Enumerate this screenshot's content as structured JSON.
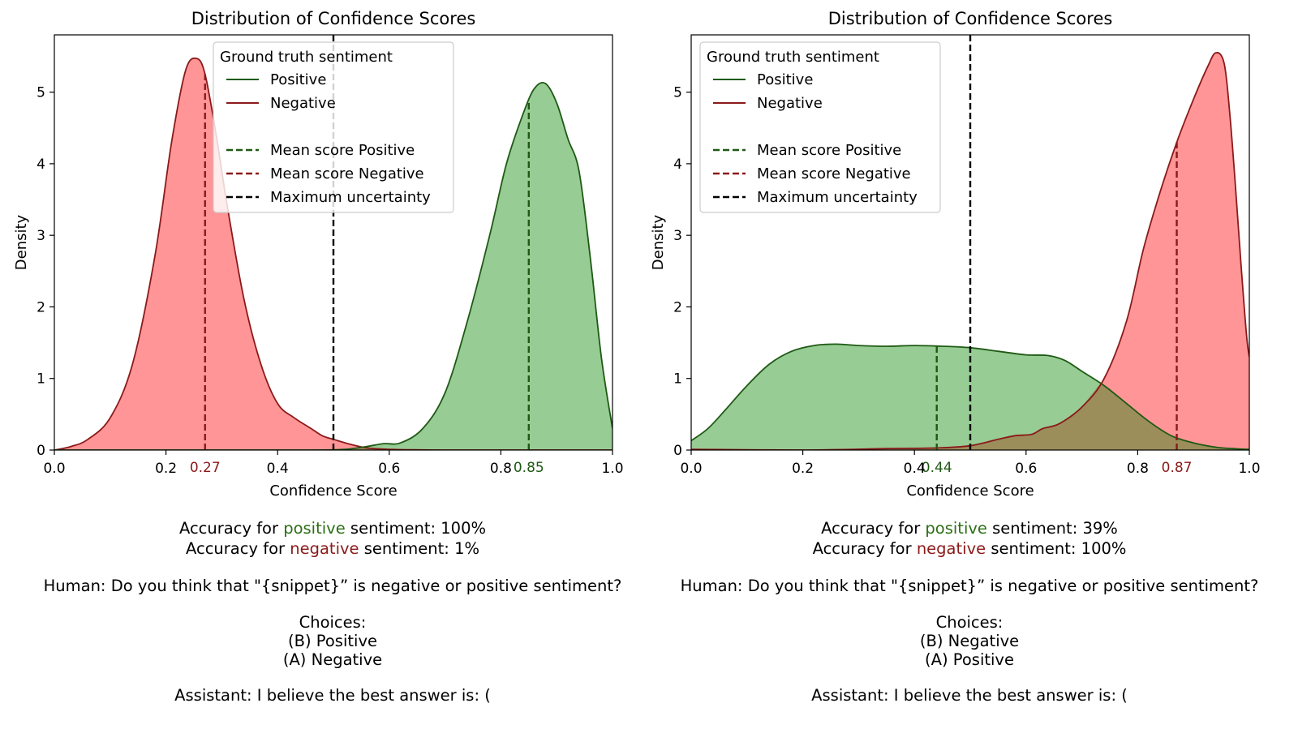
{
  "colors": {
    "positive_line": "#1e5a14",
    "negative_line": "#8b1a1a",
    "positive_fill": "#97cc94",
    "negative_fill": "#ff9596",
    "overlap_fill": "#9b8e5a",
    "uncertainty_line": "#000000"
  },
  "chart_data": [
    {
      "type": "area",
      "title": "Distribution of Confidence Scores",
      "xlabel": "Confidence Score",
      "ylabel": "Density",
      "xlim": [
        0,
        1
      ],
      "ylim": [
        0,
        5.8
      ],
      "xticks": [
        "0.0",
        "0.2",
        "0.4",
        "0.6",
        "0.8",
        "1.0"
      ],
      "yticks": [
        "0",
        "1",
        "2",
        "3",
        "4",
        "5"
      ],
      "ytick_values": [
        0,
        1,
        2,
        3,
        4,
        5
      ],
      "legend": {
        "title": "Ground truth sentiment",
        "placement": "top-center",
        "entries": [
          {
            "label": "Positive",
            "style": "solid",
            "color": "#1e5a14"
          },
          {
            "label": "Negative",
            "style": "solid",
            "color": "#8b1a1a"
          },
          {
            "label": "",
            "style": "none",
            "color": "#ffffff"
          },
          {
            "label": "Mean score Positive",
            "style": "dashed",
            "color": "#1e5a14"
          },
          {
            "label": "Mean score Negative",
            "style": "dashed",
            "color": "#8b1a1a"
          },
          {
            "label": "Maximum uncertainty",
            "style": "dashed",
            "color": "#000000"
          }
        ]
      },
      "series": [
        {
          "name": "Negative",
          "x": [
            0.0,
            0.03,
            0.06,
            0.1,
            0.14,
            0.18,
            0.21,
            0.235,
            0.255,
            0.27,
            0.29,
            0.31,
            0.34,
            0.37,
            0.4,
            0.43,
            0.46,
            0.48,
            0.5,
            0.53,
            0.56,
            0.6,
            0.7,
            0.8,
            0.9,
            1.0
          ],
          "y": [
            0.0,
            0.05,
            0.15,
            0.45,
            1.2,
            2.7,
            4.3,
            5.3,
            5.47,
            5.25,
            4.4,
            3.4,
            2.1,
            1.2,
            0.65,
            0.45,
            0.3,
            0.2,
            0.15,
            0.08,
            0.03,
            0.01,
            0.0,
            0.0,
            0.0,
            0.0
          ]
        },
        {
          "name": "Positive",
          "x": [
            0.0,
            0.3,
            0.45,
            0.52,
            0.56,
            0.59,
            0.62,
            0.66,
            0.7,
            0.74,
            0.78,
            0.81,
            0.84,
            0.86,
            0.88,
            0.9,
            0.92,
            0.94,
            0.96,
            0.98,
            1.0
          ],
          "y": [
            0.0,
            0.0,
            0.0,
            0.01,
            0.05,
            0.09,
            0.1,
            0.3,
            0.8,
            1.8,
            3.0,
            4.0,
            4.7,
            5.05,
            5.12,
            4.85,
            4.35,
            3.9,
            2.7,
            1.3,
            0.3
          ]
        }
      ],
      "mean_lines": [
        {
          "name": "Mean score Negative",
          "x": 0.27,
          "label": "0.27"
        },
        {
          "name": "Mean score Positive",
          "x": 0.85,
          "label": "0.85"
        }
      ],
      "uncertainty_x": 0.5
    },
    {
      "type": "area",
      "title": "Distribution of Confidence Scores",
      "xlabel": "Confidence Score",
      "ylabel": "Density",
      "xlim": [
        0,
        1
      ],
      "ylim": [
        0,
        5.8
      ],
      "xticks": [
        "0.0",
        "0.2",
        "0.4",
        "0.6",
        "0.8",
        "1.0"
      ],
      "yticks": [
        "0",
        "1",
        "2",
        "3",
        "4",
        "5"
      ],
      "ytick_values": [
        0,
        1,
        2,
        3,
        4,
        5
      ],
      "legend": {
        "title": "Ground truth sentiment",
        "placement": "top-left",
        "entries": [
          {
            "label": "Positive",
            "style": "solid",
            "color": "#1e5a14"
          },
          {
            "label": "Negative",
            "style": "solid",
            "color": "#8b1a1a"
          },
          {
            "label": "",
            "style": "none",
            "color": "#ffffff"
          },
          {
            "label": "Mean score Positive",
            "style": "dashed",
            "color": "#1e5a14"
          },
          {
            "label": "Mean score Negative",
            "style": "dashed",
            "color": "#8b1a1a"
          },
          {
            "label": "Maximum uncertainty",
            "style": "dashed",
            "color": "#000000"
          }
        ]
      },
      "series": [
        {
          "name": "Positive",
          "x": [
            0.0,
            0.03,
            0.06,
            0.1,
            0.14,
            0.18,
            0.22,
            0.26,
            0.3,
            0.35,
            0.4,
            0.45,
            0.5,
            0.55,
            0.6,
            0.64,
            0.67,
            0.7,
            0.74,
            0.78,
            0.82,
            0.86,
            0.9,
            0.94,
            0.97,
            1.0
          ],
          "y": [
            0.13,
            0.3,
            0.55,
            0.9,
            1.2,
            1.38,
            1.46,
            1.48,
            1.46,
            1.45,
            1.46,
            1.45,
            1.43,
            1.38,
            1.33,
            1.32,
            1.25,
            1.1,
            0.9,
            0.65,
            0.4,
            0.2,
            0.1,
            0.04,
            0.02,
            0.01
          ]
        },
        {
          "name": "Negative",
          "x": [
            0.0,
            0.2,
            0.35,
            0.44,
            0.5,
            0.55,
            0.58,
            0.61,
            0.63,
            0.66,
            0.7,
            0.74,
            0.78,
            0.81,
            0.84,
            0.87,
            0.9,
            0.925,
            0.94,
            0.955,
            0.965,
            0.975,
            0.985,
            0.995,
            1.0
          ],
          "y": [
            0.01,
            0.0,
            0.02,
            0.03,
            0.06,
            0.15,
            0.2,
            0.22,
            0.3,
            0.37,
            0.6,
            1.0,
            1.8,
            2.8,
            3.6,
            4.3,
            4.9,
            5.35,
            5.55,
            5.4,
            4.7,
            3.7,
            2.6,
            1.6,
            1.3
          ]
        }
      ],
      "mean_lines": [
        {
          "name": "Mean score Positive",
          "x": 0.44,
          "label": "0.44"
        },
        {
          "name": "Mean score Negative",
          "x": 0.87,
          "label": "0.87"
        }
      ],
      "uncertainty_x": 0.5
    }
  ],
  "captions": [
    {
      "acc_positive": {
        "prefix": "Accuracy for ",
        "word": "positive",
        "suffix": " sentiment: 100%"
      },
      "acc_negative": {
        "prefix": "Accuracy for ",
        "word": "negative",
        "suffix": " sentiment: 1%"
      },
      "human": "Human: Do you think that \"{snippet}” is negative or positive sentiment?",
      "choices_title": "Choices:",
      "choice_1": "(B) Positive",
      "choice_2": "(A) Negative",
      "assistant": "Assistant: I believe the best answer is: ("
    },
    {
      "acc_positive": {
        "prefix": "Accuracy for ",
        "word": "positive",
        "suffix": " sentiment: 39%"
      },
      "acc_negative": {
        "prefix": "Accuracy for ",
        "word": "negative",
        "suffix": " sentiment: 100%"
      },
      "human": "Human: Do you think that \"{snippet}” is negative or positive sentiment?",
      "choices_title": "Choices:",
      "choice_1": "(B) Negative",
      "choice_2": "(A) Positive",
      "assistant": "Assistant: I believe the best answer is: ("
    }
  ]
}
